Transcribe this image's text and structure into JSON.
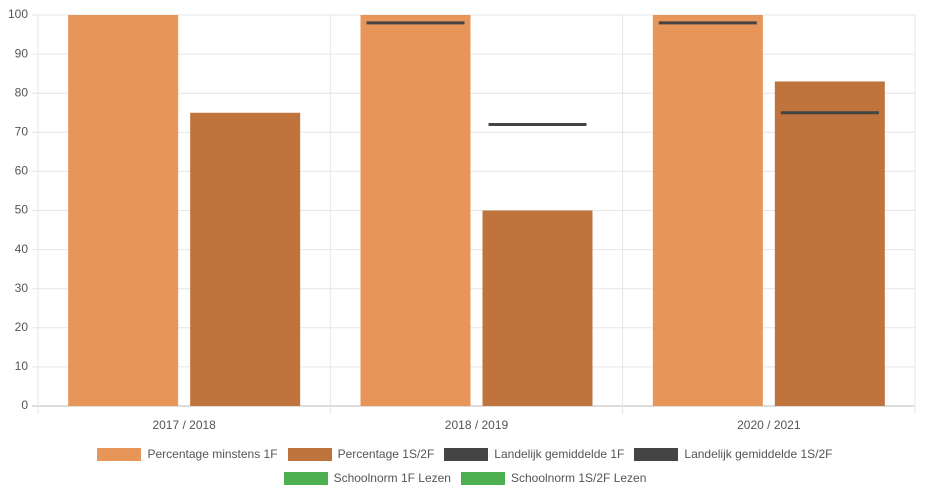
{
  "chart_data": {
    "type": "bar",
    "categories": [
      "2017 / 2018",
      "2018 / 2019",
      "2020 / 2021"
    ],
    "series": [
      {
        "name": "Percentage minstens 1F",
        "color": "#e8955a",
        "type": "bar",
        "values": [
          100,
          100,
          100
        ]
      },
      {
        "name": "Percentage 1S/2F",
        "color": "#bf733d",
        "type": "bar",
        "values": [
          75,
          50,
          83
        ]
      },
      {
        "name": "Landelijk gemiddelde 1F",
        "color": "#444444",
        "type": "line",
        "values": [
          null,
          98,
          98
        ]
      },
      {
        "name": "Landelijk gemiddelde 1S/2F",
        "color": "#444444",
        "type": "line",
        "values": [
          null,
          72,
          75
        ]
      },
      {
        "name": "Schoolnorm 1F Lezen",
        "color": "#4caf50",
        "type": "line",
        "values": [
          null,
          null,
          null
        ]
      },
      {
        "name": "Schoolnorm 1S/2F Lezen",
        "color": "#4caf50",
        "type": "line",
        "values": [
          null,
          null,
          null
        ]
      }
    ],
    "ylim": [
      0,
      100
    ],
    "yticks": [
      0,
      10,
      20,
      30,
      40,
      50,
      60,
      70,
      80,
      90,
      100
    ],
    "grid": true
  }
}
